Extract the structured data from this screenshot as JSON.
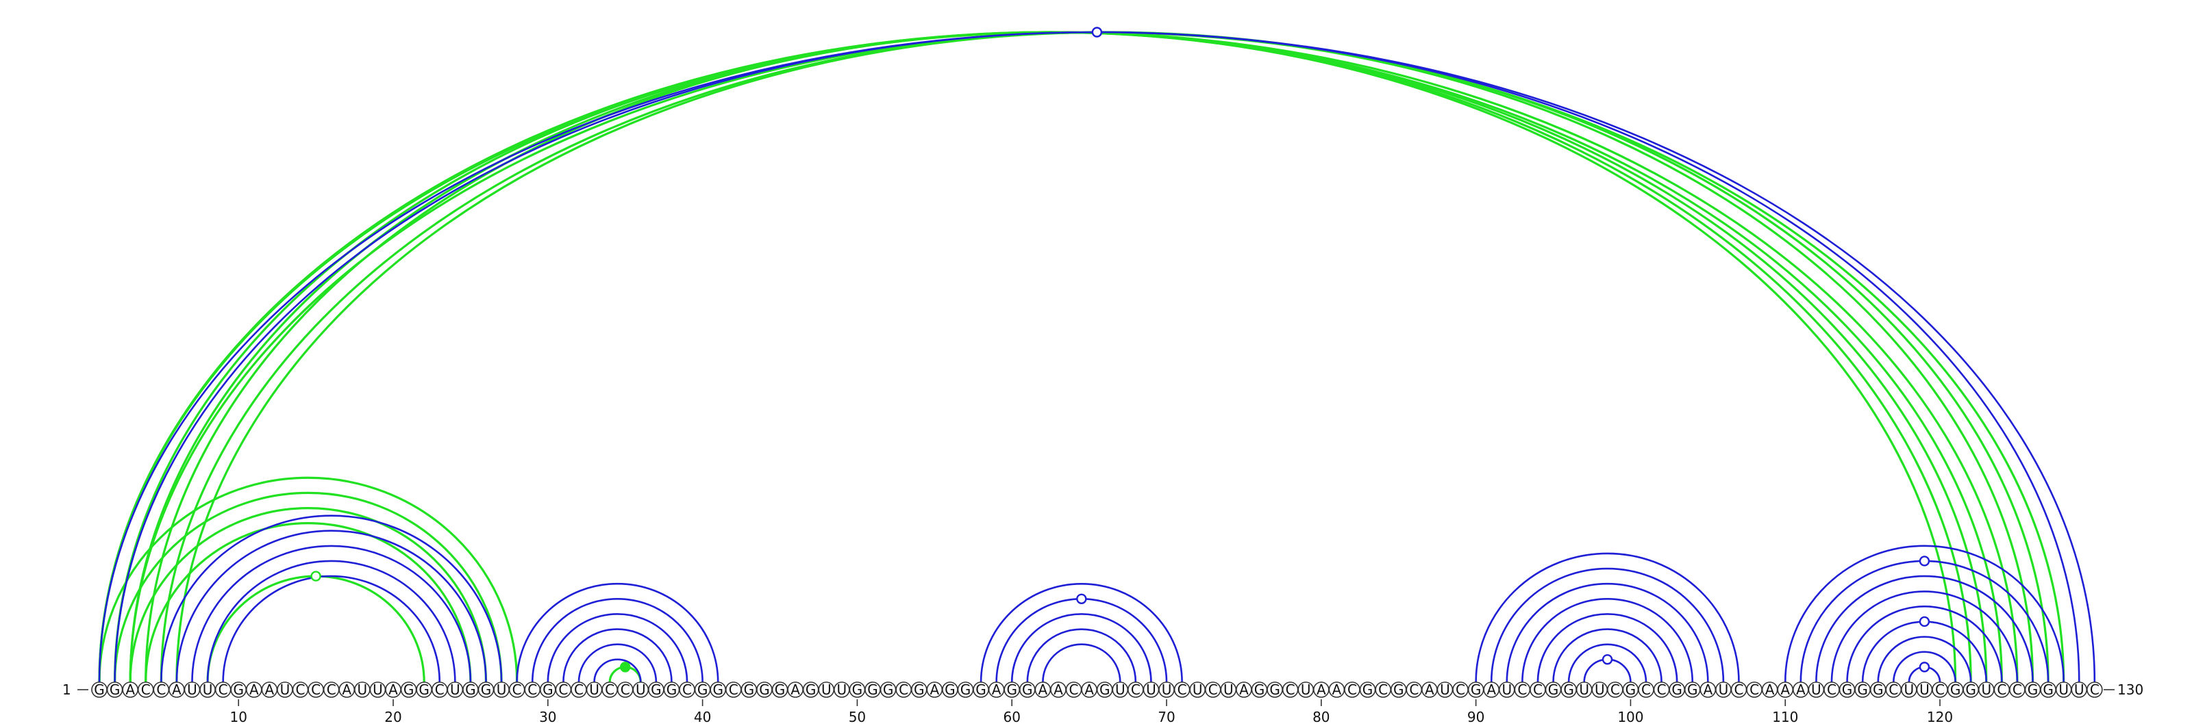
{
  "sequence": "GGACCAUUCGAAUCCCAUUAGGCUGGUCCGCCUCCUGGCGGCGGGAGUUGGGCGAGGGAGGAACAGUCUUCUCUAGGCUAACGCGCAUCGAUCCGGUUCGCCGGAUCCAAAUCGGGCUUCGGUCCGGUUC",
  "start_label": "1",
  "end_label": "130",
  "ticks": [
    10,
    20,
    30,
    40,
    50,
    60,
    70,
    80,
    90,
    100,
    110,
    120
  ],
  "colors": {
    "structure_a": "#1f1fd6",
    "structure_b": "#22e022",
    "marker_open": "#ffffff"
  },
  "arcs_blue": [
    [
      1,
      130
    ],
    [
      2,
      129
    ],
    [
      5,
      27
    ],
    [
      6,
      26
    ],
    [
      7,
      25
    ],
    [
      8,
      24
    ],
    [
      9,
      23
    ],
    [
      28,
      41
    ],
    [
      29,
      40
    ],
    [
      30,
      39
    ],
    [
      31,
      38
    ],
    [
      32,
      37
    ],
    [
      33,
      36
    ],
    [
      58,
      71
    ],
    [
      59,
      70
    ],
    [
      60,
      69
    ],
    [
      61,
      68
    ],
    [
      62,
      67
    ],
    [
      90,
      107
    ],
    [
      91,
      106
    ],
    [
      92,
      105
    ],
    [
      93,
      104
    ],
    [
      94,
      103
    ],
    [
      95,
      102
    ],
    [
      96,
      101
    ],
    [
      97,
      100
    ],
    [
      110,
      128
    ],
    [
      111,
      127
    ],
    [
      112,
      126
    ],
    [
      113,
      125
    ],
    [
      114,
      124
    ],
    [
      115,
      123
    ],
    [
      116,
      122
    ],
    [
      117,
      121
    ],
    [
      118,
      120
    ]
  ],
  "arcs_green": [
    [
      1,
      124
    ],
    [
      2,
      123
    ],
    [
      3,
      122
    ],
    [
      4,
      121
    ],
    [
      1,
      28
    ],
    [
      2,
      27
    ],
    [
      3,
      26
    ],
    [
      4,
      25
    ],
    [
      8,
      22
    ],
    [
      34,
      36
    ],
    [
      5,
      127
    ],
    [
      6,
      126
    ],
    [
      1,
      125
    ],
    [
      3,
      128
    ]
  ],
  "markers": [
    {
      "arc_color": "structure_a",
      "i": 1,
      "j": 130,
      "fill": "open"
    },
    {
      "arc_color": "structure_b",
      "i": 8,
      "j": 22,
      "fill": "open"
    },
    {
      "arc_color": "structure_b",
      "i": 34,
      "j": 36,
      "fill": "solid"
    },
    {
      "arc_color": "structure_a",
      "i": 59,
      "j": 70,
      "fill": "open"
    },
    {
      "arc_color": "structure_a",
      "i": 97,
      "j": 100,
      "fill": "open"
    },
    {
      "arc_color": "structure_a",
      "i": 111,
      "j": 127,
      "fill": "open"
    },
    {
      "arc_color": "structure_a",
      "i": 115,
      "j": 123,
      "fill": "open"
    },
    {
      "arc_color": "structure_a",
      "i": 118,
      "j": 120,
      "fill": "open"
    }
  ]
}
